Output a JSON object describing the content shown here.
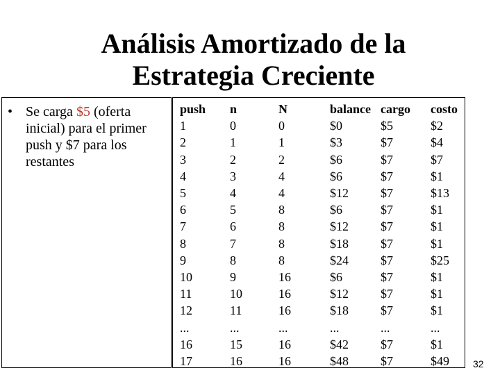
{
  "title": {
    "line1": "Análisis Amortizado de la",
    "line2": "Estrategia Creciente"
  },
  "bullet": {
    "symbol": "•",
    "before": "Se carga ",
    "highlight": "$5",
    "after": " (oferta inicial) para el primer push y $7 para los restantes",
    "highlight_color": "#c0392b"
  },
  "table": {
    "headers": {
      "push": "push",
      "n": "n",
      "N": "N",
      "balance": "balance",
      "cargo": "cargo",
      "costo": "costo"
    },
    "columns": {
      "push": [
        "1",
        "2",
        "3",
        "4",
        "5",
        "6",
        "7",
        "8",
        "9",
        "10",
        "11",
        "12",
        "...",
        "16",
        "17"
      ],
      "n": [
        "0",
        "1",
        "2",
        "3",
        "4",
        "5",
        "6",
        "7",
        "8",
        "9",
        "10",
        "11",
        "...",
        "15",
        "16"
      ],
      "N": [
        "0",
        "1",
        "2",
        "4",
        "4",
        "8",
        "8",
        "8",
        "8",
        "16",
        "16",
        "16",
        "...",
        "16",
        "16"
      ],
      "balance": [
        "$0",
        "$3",
        "$6",
        "$6",
        "$12",
        "$6",
        "$12",
        "$18",
        "$24",
        "$6",
        "$12",
        "$18",
        "...",
        "$42",
        "$48"
      ],
      "cargo": [
        "$5",
        "$7",
        "$7",
        "$7",
        "$7",
        "$7",
        "$7",
        "$7",
        "$7",
        "$7",
        "$7",
        "$7",
        "...",
        "$7",
        "$7"
      ],
      "costo": [
        "$2",
        "$4",
        "$7",
        "$1",
        "$13",
        "$1",
        "$1",
        "$1",
        "$25",
        "$1",
        "$1",
        "$1",
        "...",
        "$1",
        "$49"
      ]
    }
  },
  "page_number": "32"
}
